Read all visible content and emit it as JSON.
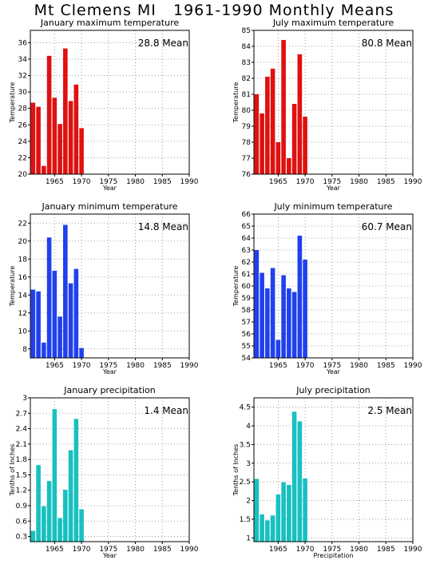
{
  "page_title": "Mt Clemens MI   1961-1990 Monthly Means",
  "chart_data": [
    {
      "type": "bar",
      "title": "January maximum temperature",
      "xlabel": "Year",
      "ylabel": "Temperature",
      "x": [
        1961,
        1962,
        1963,
        1964,
        1965,
        1966,
        1967,
        1968,
        1969,
        1970
      ],
      "values": [
        28.7,
        28.2,
        21.0,
        34.4,
        29.3,
        26.1,
        35.3,
        28.9,
        30.9,
        25.6
      ],
      "xlim": [
        1960.5,
        1990
      ],
      "ylim": [
        20,
        37.5
      ],
      "yticks": [
        20,
        22,
        24,
        26,
        28,
        30,
        32,
        34,
        36
      ],
      "xticks": [
        1965,
        1970,
        1975,
        1980,
        1985,
        1990
      ],
      "mean_label": "28.8 Mean",
      "color": "#e01010",
      "grid": true
    },
    {
      "type": "bar",
      "title": "July maximum temperature",
      "xlabel": "Year",
      "ylabel": "Temperature",
      "x": [
        1961,
        1962,
        1963,
        1964,
        1965,
        1966,
        1967,
        1968,
        1969,
        1970
      ],
      "values": [
        81.0,
        79.8,
        82.1,
        82.6,
        78.0,
        84.4,
        77.0,
        80.4,
        83.5,
        79.6
      ],
      "xlim": [
        1960.5,
        1990
      ],
      "ylim": [
        76,
        85
      ],
      "yticks": [
        76,
        77,
        78,
        79,
        80,
        81,
        82,
        83,
        84,
        85
      ],
      "xticks": [
        1965,
        1970,
        1975,
        1980,
        1985,
        1990
      ],
      "mean_label": "80.8 Mean",
      "color": "#e01010",
      "grid": true
    },
    {
      "type": "bar",
      "title": "January minimum temperature",
      "xlabel": "Year",
      "ylabel": "Temperature",
      "x": [
        1961,
        1962,
        1963,
        1964,
        1965,
        1966,
        1967,
        1968,
        1969,
        1970
      ],
      "values": [
        14.6,
        14.4,
        8.7,
        20.4,
        16.7,
        11.6,
        21.8,
        15.3,
        16.9,
        8.1
      ],
      "xlim": [
        1960.5,
        1990
      ],
      "ylim": [
        7,
        23
      ],
      "yticks": [
        8,
        10,
        12,
        14,
        16,
        18,
        20,
        22
      ],
      "xticks": [
        1965,
        1970,
        1975,
        1980,
        1985,
        1990
      ],
      "mean_label": "14.8 Mean",
      "color": "#2040ee",
      "grid": true
    },
    {
      "type": "bar",
      "title": "July minimum temperature",
      "xlabel": "Year",
      "ylabel": "Temperature",
      "x": [
        1961,
        1962,
        1963,
        1964,
        1965,
        1966,
        1967,
        1968,
        1969,
        1970
      ],
      "values": [
        63.0,
        61.1,
        59.8,
        61.5,
        55.5,
        60.9,
        59.8,
        59.5,
        64.2,
        62.2
      ],
      "xlim": [
        1960.5,
        1990
      ],
      "ylim": [
        54,
        66
      ],
      "yticks": [
        54,
        55,
        56,
        57,
        58,
        59,
        60,
        61,
        62,
        63,
        64,
        65,
        66
      ],
      "xticks": [
        1965,
        1970,
        1975,
        1980,
        1985,
        1990
      ],
      "mean_label": "60.7 Mean",
      "color": "#2040ee",
      "grid": true
    },
    {
      "type": "bar",
      "title": "January precipitation",
      "xlabel": "Year",
      "ylabel": "Tenths of Inches",
      "x": [
        1961,
        1962,
        1963,
        1964,
        1965,
        1966,
        1967,
        1968,
        1969,
        1970
      ],
      "values": [
        0.41,
        1.69,
        0.89,
        1.38,
        2.78,
        0.66,
        1.21,
        1.98,
        2.59,
        0.83
      ],
      "xlim": [
        1960.5,
        1990
      ],
      "ylim": [
        0.2,
        3.0
      ],
      "yticks": [
        0.3,
        0.6,
        0.9,
        1.2,
        1.5,
        1.8,
        2.1,
        2.4,
        2.7,
        3
      ],
      "ytick_labels": [
        "0.3",
        "0.6",
        "0.9",
        "1.2",
        "1.5",
        "1.8",
        "2.1",
        "2.4",
        "2.7",
        "3"
      ],
      "xticks": [
        1965,
        1970,
        1975,
        1980,
        1985,
        1990
      ],
      "mean_label": "1.4 Mean",
      "color": "#18c0c0",
      "grid": true
    },
    {
      "type": "bar",
      "title": "July precipitation",
      "xlabel": "Precipitation",
      "ylabel": "Tenths of Inches",
      "x": [
        1961,
        1962,
        1963,
        1964,
        1965,
        1966,
        1967,
        1968,
        1969,
        1970
      ],
      "values": [
        2.58,
        1.63,
        1.47,
        1.6,
        2.16,
        2.49,
        2.42,
        4.38,
        4.12,
        2.59
      ],
      "xlim": [
        1960.5,
        1990
      ],
      "ylim": [
        0.9,
        4.75
      ],
      "yticks": [
        1,
        1.5,
        2,
        2.5,
        3,
        3.5,
        4,
        4.5
      ],
      "ytick_labels": [
        "1",
        "1.5",
        "2",
        "2.5",
        "3",
        "3.5",
        "4",
        "4.5"
      ],
      "xticks": [
        1965,
        1970,
        1975,
        1980,
        1985,
        1990
      ],
      "mean_label": "2.5 Mean",
      "color": "#18c0c0",
      "grid": true
    }
  ]
}
